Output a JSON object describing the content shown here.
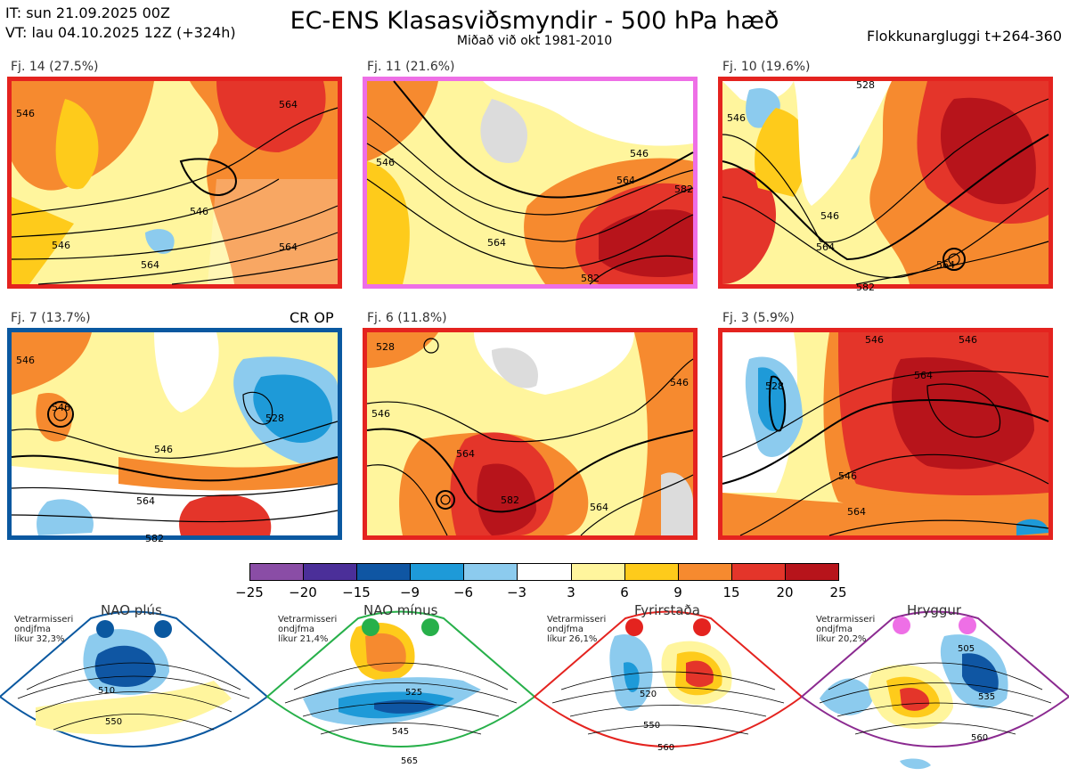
{
  "header": {
    "it_line": "IT: sun 21.09.2025 00Z",
    "vt_line": "VT: lau 04.10.2025 12Z  (+324h)",
    "title": "EC-ENS Klasasviðsmyndir - 500 hPa hæð",
    "subtitle": "Miðað við okt 1981-2010",
    "window": "Flokkunargluggi t+264-360"
  },
  "panels": [
    {
      "label": "Fj. 14 (27.5%)",
      "border": "#e4231f",
      "contours": [
        "546",
        "546",
        "564",
        "564",
        "564",
        "546"
      ]
    },
    {
      "label": "Fj. 11 (21.6%)",
      "border": "#ee6fe6",
      "contours": [
        "546",
        "546",
        "564",
        "564",
        "582",
        "582"
      ]
    },
    {
      "label": "Fj. 10 (19.6%)",
      "border": "#e4231f",
      "contours": [
        "546",
        "546",
        "564",
        "564",
        "582",
        "528"
      ]
    },
    {
      "label": "Fj. 7 (13.7%)",
      "border": "#0a58a0",
      "extra": "CR OP",
      "contours": [
        "546",
        "546",
        "564",
        "582",
        "528",
        "546"
      ]
    },
    {
      "label": "Fj. 6 (11.8%)",
      "border": "#e4231f",
      "contours": [
        "546",
        "564",
        "564",
        "582",
        "546",
        "528"
      ]
    },
    {
      "label": "Fj. 3 (5.9%)",
      "border": "#e4231f",
      "contours": [
        "546",
        "564",
        "564",
        "528",
        "546",
        "546"
      ]
    }
  ],
  "colorbar": {
    "colors": [
      "#8a4da6",
      "#4b2f99",
      "#0f56a3",
      "#1e9ad8",
      "#8ccbee",
      "#ffffff",
      "#fff59d",
      "#fecb1b",
      "#f68a2f",
      "#e4352a",
      "#b7141b"
    ],
    "ticks": [
      "−25",
      "−20",
      "−15",
      "−9",
      "−6",
      "−3",
      "3",
      "6",
      "9",
      "15",
      "20",
      "25"
    ]
  },
  "regimes": [
    {
      "name": "NAO plús",
      "note": [
        "Vetrarmisseri",
        "ondjfma",
        "líkur 32,3%"
      ],
      "color": "#0a58a0",
      "labels": [
        "510",
        "550"
      ]
    },
    {
      "name": "NAO mínus",
      "note": [
        "Vetrarmisseri",
        "ondjfma",
        "líkur 21,4%"
      ],
      "color": "#27b04a",
      "labels": [
        "525",
        "545",
        "565"
      ]
    },
    {
      "name": "Fyrirstaða",
      "note": [
        "Vetrarmisseri",
        "ondjfma",
        "líkur 26,1%"
      ],
      "color": "#e4231f",
      "labels": [
        "520",
        "550",
        "560"
      ]
    },
    {
      "name": "Hryggur",
      "note": [
        "Vetrarmisseri",
        "ondjfma",
        "líkur 20,2%"
      ],
      "color": "#8b2a90",
      "labels": [
        "505",
        "535",
        "560"
      ]
    }
  ]
}
